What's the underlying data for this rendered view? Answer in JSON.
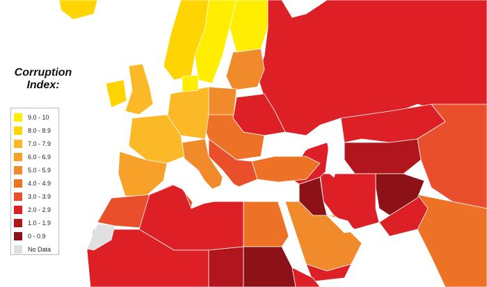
{
  "title": "Corruption Index:",
  "legend": [
    {
      "label": "9.0 - 10",
      "color": "#ffee00"
    },
    {
      "label": "8.0 - 8.9",
      "color": "#ffd400"
    },
    {
      "label": "7.0 - 7.9",
      "color": "#fbb928"
    },
    {
      "label": "6.0 - 6.9",
      "color": "#f7a128"
    },
    {
      "label": "5.0 - 5.9",
      "color": "#f08a2a"
    },
    {
      "label": "4.0 - 4.9",
      "color": "#ee7226"
    },
    {
      "label": "3.0 - 3.9",
      "color": "#e94f2a"
    },
    {
      "label": "2.0 - 2.9",
      "color": "#dd1f26"
    },
    {
      "label": "1.0 - 1.9",
      "color": "#b0161c"
    },
    {
      "label": "0 - 0.9",
      "color": "#8c1218"
    },
    {
      "label": "No Data",
      "color": "#e0e0e0"
    }
  ]
}
